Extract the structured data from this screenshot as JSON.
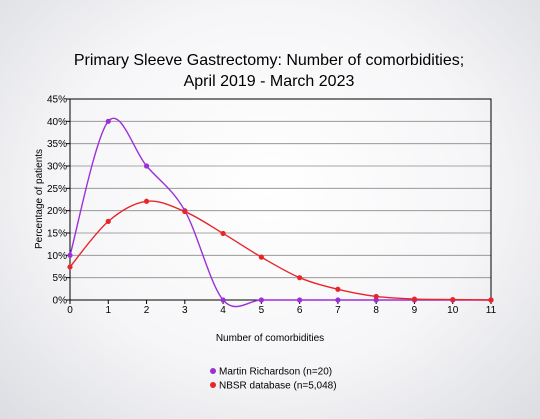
{
  "chart_data": {
    "type": "line",
    "title_lines": [
      "Primary Sleeve Gastrectomy: Number of comorbidities;",
      "April 2019 - March 2023"
    ],
    "xlabel": "Number of comorbidities",
    "ylabel": "Percentage of patients",
    "x": [
      0,
      1,
      2,
      3,
      4,
      5,
      6,
      7,
      8,
      9,
      10,
      11
    ],
    "xlim": [
      0,
      11
    ],
    "ylim": [
      0,
      45
    ],
    "y_ticks": [
      "0%",
      "5%",
      "10%",
      "15%",
      "20%",
      "25%",
      "30%",
      "35%",
      "40%",
      "45%"
    ],
    "x_ticks": [
      "0",
      "1",
      "2",
      "3",
      "4",
      "5",
      "6",
      "7",
      "8",
      "9",
      "10",
      "11"
    ],
    "grid": true,
    "legend_position": "bottom",
    "series": [
      {
        "name": "Martin Richardson (n=20)",
        "color": "#9b30d9",
        "values": [
          10,
          40,
          30,
          20,
          0,
          0,
          0,
          0,
          0,
          0,
          0,
          0
        ]
      },
      {
        "name": "NBSR database (n=5,048)",
        "color": "#e8262a",
        "values": [
          7.4,
          17.6,
          22.1,
          19.8,
          14.9,
          9.6,
          5.0,
          2.4,
          0.8,
          0.2,
          0.1,
          0.0
        ]
      }
    ]
  }
}
